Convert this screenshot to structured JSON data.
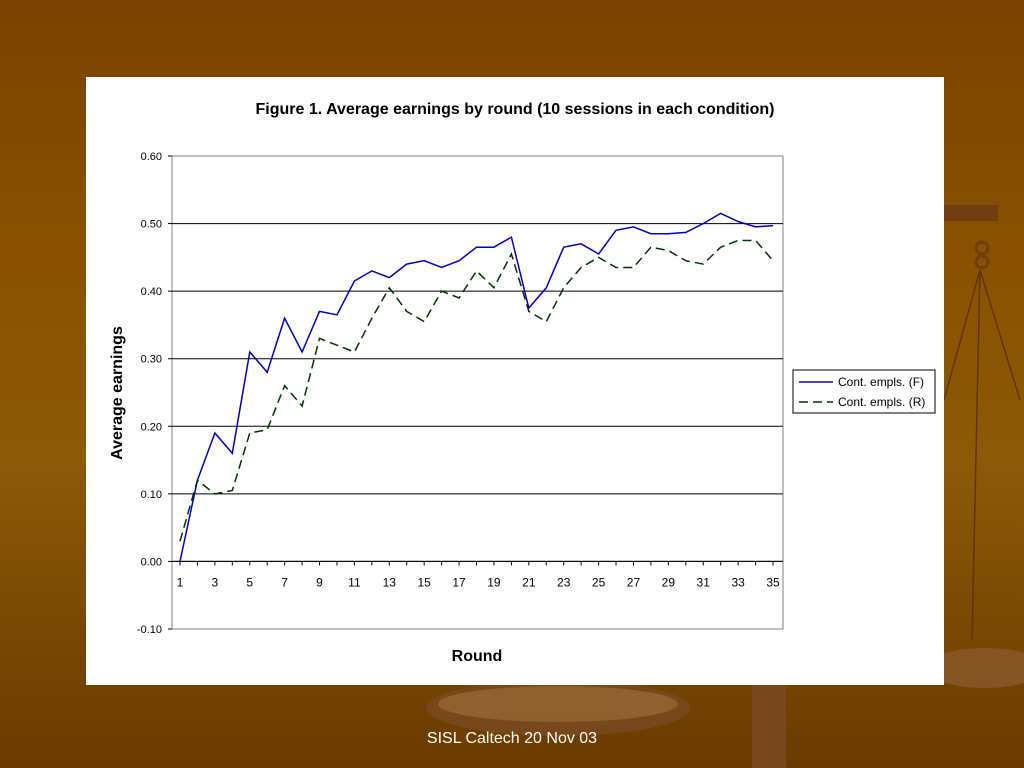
{
  "footer": {
    "text": "SISL Caltech 20 Nov 03"
  },
  "colors": {
    "series_f": "#0000cc",
    "series_r": "#003300"
  },
  "chart_data": {
    "type": "line",
    "title": "Figure 1.  Average earnings by round (10 sessions in each condition)",
    "xlabel": "Round",
    "ylabel": "Average earnings",
    "ylim": [
      -0.1,
      0.6
    ],
    "yticks": [
      "0.60",
      "0.50",
      "0.40",
      "0.30",
      "0.20",
      "0.10",
      "0.00",
      "-0.10"
    ],
    "xtick_labels": [
      "1",
      "3",
      "5",
      "7",
      "9",
      "11",
      "13",
      "15",
      "17",
      "19",
      "21",
      "23",
      "25",
      "27",
      "29",
      "31",
      "33",
      "35"
    ],
    "grid": "horizontal",
    "legend_position": "right",
    "x": [
      1,
      2,
      3,
      4,
      5,
      6,
      7,
      8,
      9,
      10,
      11,
      12,
      13,
      14,
      15,
      16,
      17,
      18,
      19,
      20,
      21,
      22,
      23,
      24,
      25,
      26,
      27,
      28,
      29,
      30,
      31,
      32,
      33,
      34,
      35
    ],
    "series": [
      {
        "name": "Cont. empls. (F)",
        "style": "solid",
        "values": [
          0.0,
          0.12,
          0.19,
          0.16,
          0.31,
          0.28,
          0.36,
          0.31,
          0.37,
          0.365,
          0.415,
          0.43,
          0.42,
          0.44,
          0.445,
          0.435,
          0.445,
          0.465,
          0.465,
          0.48,
          0.375,
          0.405,
          0.465,
          0.47,
          0.455,
          0.49,
          0.495,
          0.485,
          0.485,
          0.487,
          0.5,
          0.515,
          0.503,
          0.495,
          0.497
        ]
      },
      {
        "name": "Cont. empls. (R)",
        "style": "dashed",
        "values": [
          0.03,
          0.12,
          0.1,
          0.105,
          0.19,
          0.195,
          0.26,
          0.23,
          0.33,
          0.32,
          0.31,
          0.36,
          0.405,
          0.37,
          0.355,
          0.4,
          0.39,
          0.43,
          0.405,
          0.455,
          0.37,
          0.355,
          0.405,
          0.435,
          0.45,
          0.435,
          0.435,
          0.465,
          0.46,
          0.445,
          0.44,
          0.465,
          0.475,
          0.475,
          0.445
        ]
      }
    ]
  }
}
